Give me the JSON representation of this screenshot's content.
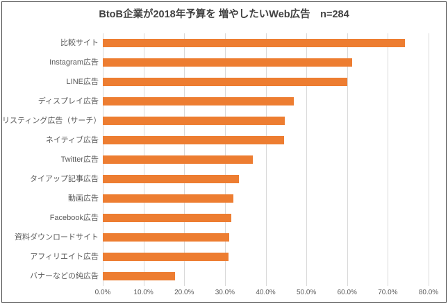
{
  "window": {
    "background": "#ffffff",
    "border_color": "#4a4a4a"
  },
  "chart_data": {
    "type": "bar",
    "orientation": "horizontal",
    "title": "BtoB企業が2018年予算を 増やしたいWeb広告　n=284",
    "sample_size": "n=284",
    "categories": [
      "比較サイト",
      "Instagram広告",
      "LINE広告",
      "ディスプレイ広告",
      "リスティング広告（サーチ）",
      "ネイティブ広告",
      "Twitter広告",
      "タイアップ記事広告",
      "動画広告",
      "Facebook広告",
      "資料ダウンロードサイト",
      "アフィリエイト広告",
      "バナーなどの純広告"
    ],
    "values": [
      74.2,
      61.3,
      60.0,
      46.9,
      44.7,
      44.5,
      36.8,
      33.4,
      32.0,
      31.6,
      31.0,
      30.8,
      17.8
    ],
    "unit": "%",
    "xlim": [
      0,
      80
    ],
    "x_ticks": [
      "0.0%",
      "10.0%",
      "20.0%",
      "30.0%",
      "40.0%",
      "50.0%",
      "60.0%",
      "70.0%",
      "80.0%"
    ],
    "grid": true,
    "legend": "none",
    "bar_color": "#ED7D31",
    "gridline_color": "#d9d9d9",
    "axis_label_color": "#595959",
    "title_color": "#404040"
  }
}
